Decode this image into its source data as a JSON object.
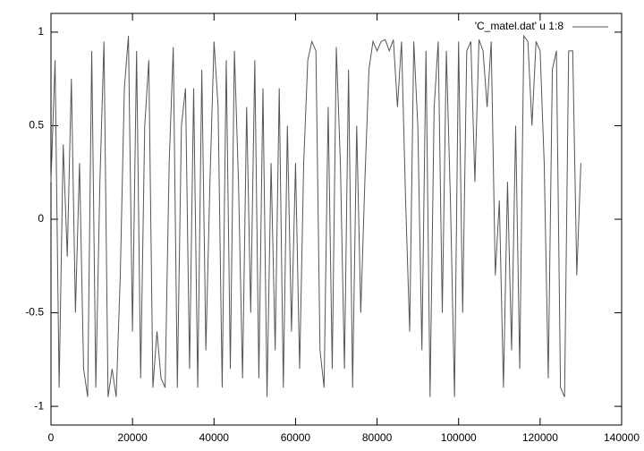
{
  "chart_data": {
    "type": "line",
    "x": [
      0,
      1000,
      2000,
      3000,
      4000,
      5000,
      6000,
      7000,
      8000,
      9000,
      10000,
      11000,
      12000,
      13000,
      14000,
      15000,
      16000,
      17000,
      18000,
      19000,
      20000,
      21000,
      22000,
      23000,
      24000,
      25000,
      26000,
      27000,
      28000,
      29000,
      30000,
      31000,
      32000,
      33000,
      34000,
      35000,
      36000,
      37000,
      38000,
      39000,
      40000,
      41000,
      42000,
      43000,
      44000,
      45000,
      46000,
      47000,
      48000,
      49000,
      50000,
      51000,
      52000,
      53000,
      54000,
      55000,
      56000,
      57000,
      58000,
      59000,
      60000,
      61000,
      62000,
      63000,
      64000,
      65000,
      66000,
      67000,
      68000,
      69000,
      70000,
      71000,
      72000,
      73000,
      74000,
      75000,
      76000,
      77000,
      78000,
      79000,
      80000,
      81000,
      82000,
      83000,
      84000,
      85000,
      86000,
      87000,
      88000,
      89000,
      90000,
      91000,
      92000,
      93000,
      94000,
      95000,
      96000,
      97000,
      98000,
      99000,
      100000,
      101000,
      102000,
      103000,
      104000,
      105000,
      106000,
      107000,
      108000,
      109000,
      110000,
      111000,
      112000,
      113000,
      114000,
      115000,
      116000,
      117000,
      118000,
      119000,
      120000,
      121000,
      122000,
      123000,
      124000,
      125000,
      126000,
      127000,
      128000,
      129000,
      130000
    ],
    "series": [
      {
        "name": "'C_matel.dat' u 1:8",
        "color": "#555555",
        "values": [
          0.2,
          0.85,
          -0.9,
          0.4,
          -0.2,
          0.75,
          -0.5,
          0.3,
          -0.8,
          -0.95,
          0.9,
          -0.9,
          0.2,
          0.95,
          -0.95,
          -0.8,
          -0.95,
          -0.3,
          0.7,
          0.98,
          -0.6,
          0.9,
          -0.85,
          0.5,
          0.85,
          -0.9,
          -0.6,
          -0.85,
          -0.9,
          0.3,
          0.92,
          -0.9,
          0.5,
          0.7,
          -0.8,
          0.7,
          -0.9,
          0.8,
          -0.7,
          0.2,
          0.95,
          0.6,
          -0.9,
          0.85,
          -0.8,
          0.9,
          0.2,
          -0.85,
          0.6,
          -0.5,
          0.85,
          -0.85,
          0.7,
          -0.95,
          0.3,
          -0.7,
          0.7,
          -0.9,
          0.5,
          -0.6,
          0.3,
          -0.8,
          0.3,
          0.85,
          0.95,
          0.9,
          -0.7,
          -0.9,
          0.6,
          -0.8,
          0.92,
          0.3,
          -0.8,
          0.8,
          -0.9,
          0.5,
          -0.5,
          0.2,
          0.8,
          0.95,
          0.9,
          0.95,
          0.96,
          0.9,
          0.96,
          0.6,
          0.95,
          0.1,
          -0.6,
          0.95,
          0.5,
          -0.7,
          0.9,
          -0.95,
          0.6,
          0.95,
          -0.5,
          0.9,
          0.1,
          -0.95,
          0.95,
          -0.5,
          0.9,
          0.95,
          0.2,
          0.96,
          0.9,
          0.6,
          0.95,
          -0.3,
          0.1,
          -0.9,
          0.2,
          -0.7,
          0.5,
          -0.8,
          0.98,
          0.95,
          0.5,
          0.95,
          0.9,
          0.3,
          -0.85,
          0.8,
          0.9,
          -0.9,
          -0.95,
          0.9,
          0.9,
          -0.3,
          0.3
        ]
      }
    ],
    "xlim": [
      0,
      140000
    ],
    "xticks": [
      0,
      20000,
      40000,
      60000,
      80000,
      100000,
      120000,
      140000
    ],
    "ylim": [
      -1.1,
      1.1
    ],
    "yticks": [
      -1,
      -0.5,
      0,
      0.5,
      1
    ],
    "grid": false,
    "legend": "top-right"
  }
}
